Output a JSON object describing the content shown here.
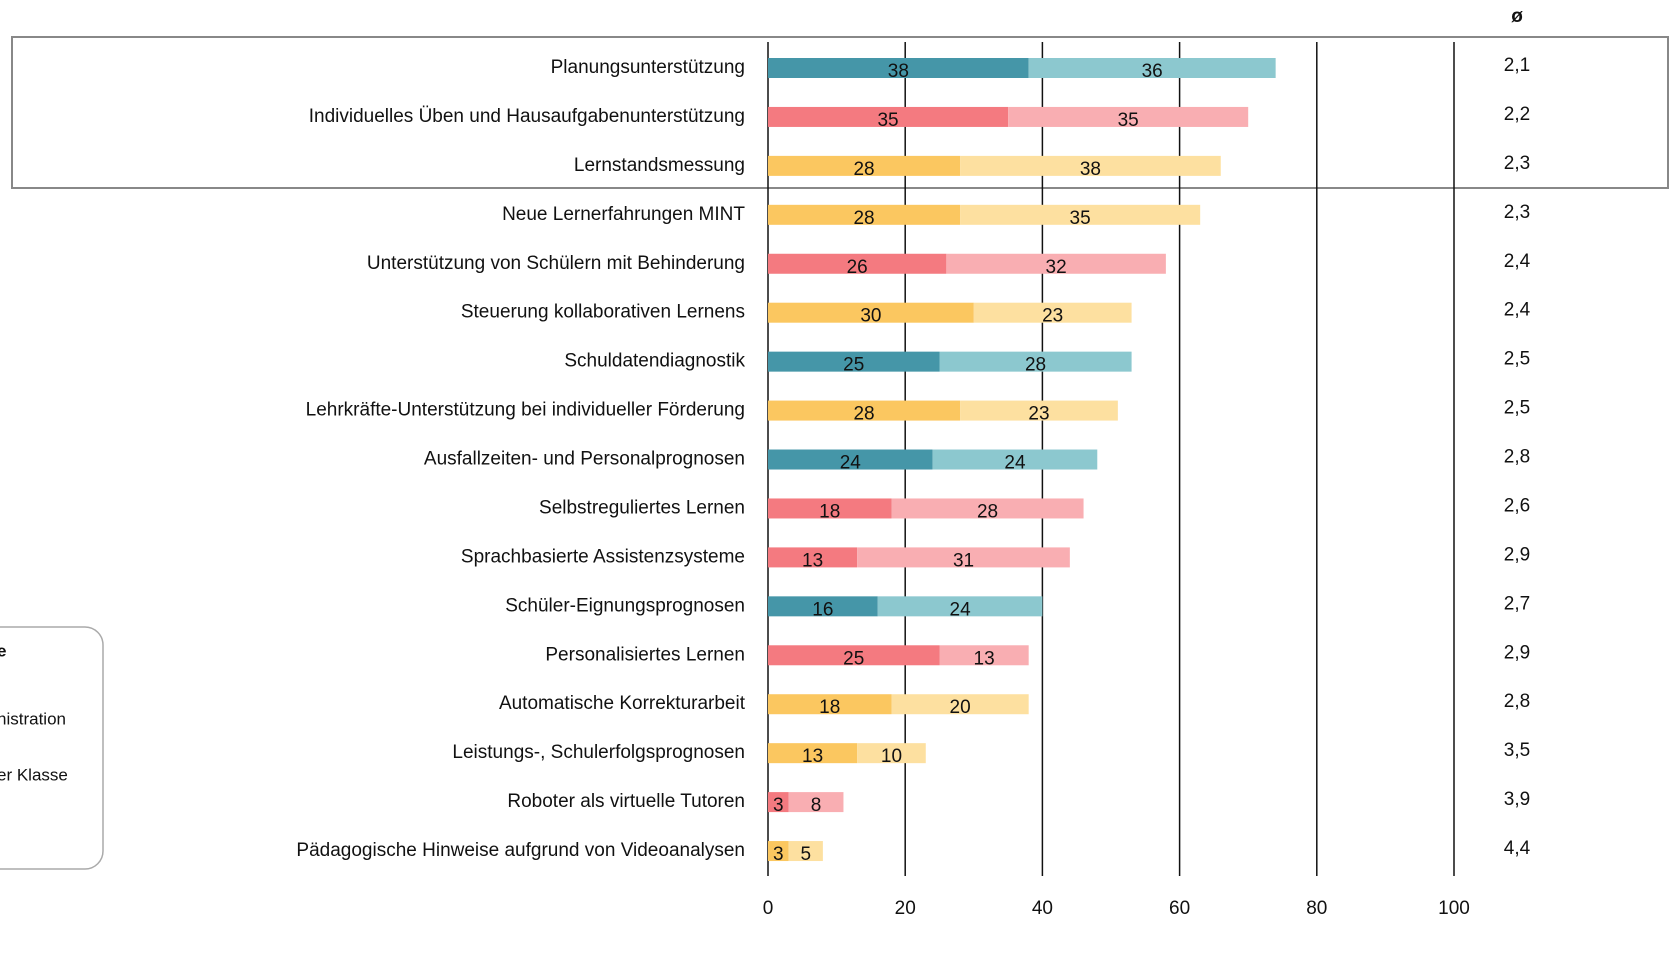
{
  "chart_data": {
    "type": "stacked-barh",
    "categories": [
      "Planungsunterstützung",
      "Individuelles Üben und Hausaufgabenunterstützung",
      "Lernstandsmessung",
      "Neue Lernerfahrungen MINT",
      "Unterstützung von Schülern mit Behinderung",
      "Steuerung kollaborativen Lernens",
      "Schuldatendiagnostik",
      "Lehrkräfte-Unterstützung bei individueller Förderung",
      "Ausfallzeiten- und Personalprognosen",
      "Selbstreguliertes Lernen",
      "Sprachbasierte Assistenzsysteme",
      "Schüler-Eignungsprognosen",
      "Personalisiertes Lernen",
      "Automatische Korrekturarbeit",
      "Leistungs-, Schulerfolgsprognosen",
      "Roboter als virtuelle Tutoren",
      "Pädagogische Hinweise aufgrund von Videoanalysen"
    ],
    "series": [
      {
        "values": [
          38,
          35,
          28,
          28,
          26,
          30,
          25,
          28,
          24,
          18,
          13,
          16,
          25,
          18,
          13,
          3,
          3
        ],
        "colors": [
          "#4596a8",
          "#f47a80",
          "#fbc760",
          "#fbc760",
          "#f47a80",
          "#fbc760",
          "#4596a8",
          "#fbc760",
          "#4596a8",
          "#f47a80",
          "#f47a80",
          "#4596a8",
          "#f47a80",
          "#fbc760",
          "#fbc760",
          "#f47a80",
          "#fbc760"
        ]
      },
      {
        "values": [
          36,
          35,
          38,
          35,
          32,
          23,
          28,
          23,
          24,
          28,
          31,
          24,
          13,
          20,
          10,
          8,
          5
        ],
        "colors": [
          "#8cc8cf",
          "#f9aeb2",
          "#fde0a0",
          "#fde0a0",
          "#f9aeb2",
          "#fde0a0",
          "#8cc8cf",
          "#fde0a0",
          "#8cc8cf",
          "#f9aeb2",
          "#f9aeb2",
          "#8cc8cf",
          "#f9aeb2",
          "#fde0a0",
          "#fde0a0",
          "#f9aeb2",
          "#fde0a0"
        ]
      }
    ],
    "average_header": "ø",
    "averages": [
      "2,1",
      "2,2",
      "2,3",
      "2,3",
      "2,4",
      "2,4",
      "2,5",
      "2,5",
      "2,8",
      "2,6",
      "2,9",
      "2,7",
      "2,9",
      "2,8",
      "3,5",
      "3,9",
      "4,4"
    ],
    "xlim": [
      0,
      100
    ],
    "xticks": [
      0,
      20,
      40,
      60,
      80,
      100
    ],
    "grid": true,
    "legend": {
      "title": "e",
      "entries": [
        "nistration",
        "er Klasse"
      ]
    }
  }
}
